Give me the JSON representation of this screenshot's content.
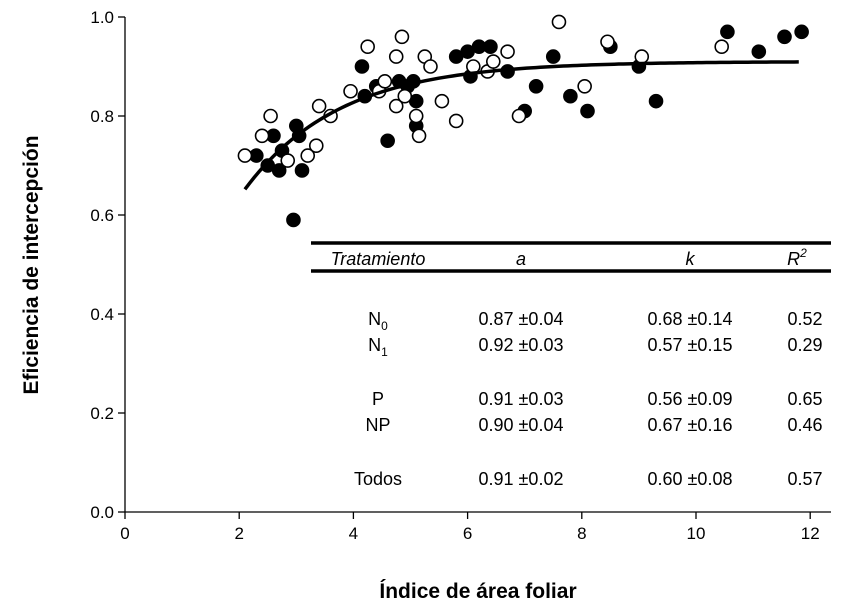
{
  "chart_data": {
    "type": "scatter",
    "xlabel": "Índice de área foliar",
    "ylabel": "Eficiencia de intercepción",
    "xlim": [
      0,
      13
    ],
    "ylim": [
      0,
      1.0
    ],
    "x_ticks": [
      "0",
      "2",
      "4",
      "6",
      "8",
      "10",
      "12"
    ],
    "y_ticks": [
      "0.0",
      "0.2",
      "0.4",
      "0.6",
      "0.8",
      "1.0"
    ],
    "grid": false,
    "series": [
      {
        "marker": "filled-circle",
        "color": "#000000",
        "points": [
          [
            2.3,
            0.72
          ],
          [
            2.5,
            0.7
          ],
          [
            2.6,
            0.76
          ],
          [
            2.7,
            0.69
          ],
          [
            2.75,
            0.73
          ],
          [
            2.95,
            0.59
          ],
          [
            3.0,
            0.78
          ],
          [
            3.05,
            0.76
          ],
          [
            3.1,
            0.69
          ],
          [
            4.15,
            0.9
          ],
          [
            4.2,
            0.84
          ],
          [
            4.4,
            0.86
          ],
          [
            4.6,
            0.75
          ],
          [
            4.8,
            0.87
          ],
          [
            4.95,
            0.86
          ],
          [
            5.05,
            0.87
          ],
          [
            5.1,
            0.83
          ],
          [
            5.1,
            0.78
          ],
          [
            5.8,
            0.92
          ],
          [
            6.0,
            0.93
          ],
          [
            6.05,
            0.88
          ],
          [
            6.2,
            0.94
          ],
          [
            6.4,
            0.94
          ],
          [
            6.7,
            0.89
          ],
          [
            7.0,
            0.81
          ],
          [
            7.2,
            0.86
          ],
          [
            7.5,
            0.92
          ],
          [
            7.8,
            0.84
          ],
          [
            8.1,
            0.81
          ],
          [
            8.5,
            0.94
          ],
          [
            9.0,
            0.9
          ],
          [
            9.3,
            0.83
          ],
          [
            10.55,
            0.97
          ],
          [
            11.1,
            0.93
          ],
          [
            11.55,
            0.96
          ],
          [
            11.85,
            0.97
          ]
        ]
      },
      {
        "marker": "open-circle",
        "color": "#000000",
        "points": [
          [
            2.1,
            0.72
          ],
          [
            2.4,
            0.76
          ],
          [
            2.55,
            0.8
          ],
          [
            2.85,
            0.71
          ],
          [
            3.2,
            0.72
          ],
          [
            3.35,
            0.74
          ],
          [
            3.4,
            0.82
          ],
          [
            3.6,
            0.8
          ],
          [
            3.95,
            0.85
          ],
          [
            4.25,
            0.94
          ],
          [
            4.45,
            0.85
          ],
          [
            4.55,
            0.87
          ],
          [
            4.75,
            0.82
          ],
          [
            4.75,
            0.92
          ],
          [
            4.85,
            0.96
          ],
          [
            4.9,
            0.84
          ],
          [
            5.1,
            0.8
          ],
          [
            5.15,
            0.76
          ],
          [
            5.25,
            0.92
          ],
          [
            5.35,
            0.9
          ],
          [
            5.55,
            0.83
          ],
          [
            5.8,
            0.79
          ],
          [
            6.1,
            0.9
          ],
          [
            6.35,
            0.89
          ],
          [
            6.45,
            0.91
          ],
          [
            6.7,
            0.93
          ],
          [
            6.9,
            0.8
          ],
          [
            7.6,
            0.99
          ],
          [
            8.05,
            0.86
          ],
          [
            8.45,
            0.95
          ],
          [
            9.05,
            0.92
          ],
          [
            10.45,
            0.94
          ]
        ]
      }
    ],
    "fit_curve": {
      "model": "y = a(1 - exp(-k x))",
      "a": 0.91,
      "k": 0.6,
      "x_range": [
        2.1,
        11.8
      ]
    },
    "table": {
      "headers": [
        "Tratamiento",
        "a",
        "k",
        "R2"
      ],
      "rows": [
        {
          "group": 0,
          "tratamiento_base": "N",
          "tratamiento_sub": "0",
          "a": "0.87 ±0.04",
          "k": "0.68 ±0.14",
          "r2": "0.52"
        },
        {
          "group": 0,
          "tratamiento_base": "N",
          "tratamiento_sub": "1",
          "a": "0.92 ±0.03",
          "k": "0.57 ±0.15",
          "r2": "0.29"
        },
        {
          "group": 1,
          "tratamiento_base": "P",
          "tratamiento_sub": "",
          "a": "0.91 ±0.03",
          "k": "0.56 ±0.09",
          "r2": "0.65"
        },
        {
          "group": 1,
          "tratamiento_base": "NP",
          "tratamiento_sub": "",
          "a": "0.90 ±0.04",
          "k": "0.67 ±0.16",
          "r2": "0.46"
        },
        {
          "group": 2,
          "tratamiento_base": "Todos",
          "tratamiento_sub": "",
          "a": "0.91 ±0.02",
          "k": "0.60 ±0.08",
          "r2": "0.57"
        }
      ]
    }
  }
}
